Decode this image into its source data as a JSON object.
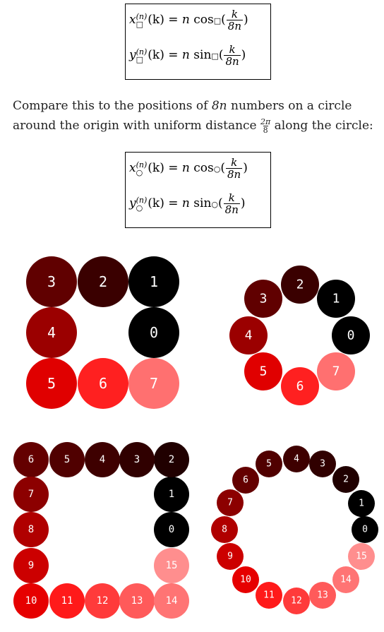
{
  "equations": {
    "square": {
      "x_lhs": "x",
      "y_lhs": "y",
      "sup": "(n)",
      "sub_symbol": "□",
      "arg": "(k)",
      "equals": "=",
      "n": "n",
      "cos": "cos",
      "sin": "sin",
      "frac_num": "k",
      "frac_den": "8n"
    },
    "circle": {
      "x_lhs": "x",
      "y_lhs": "y",
      "sup": "(n)",
      "sub_symbol": "○",
      "arg": "(k)",
      "equals": "=",
      "n": "n",
      "cos": "cos",
      "sin": "sin",
      "frac_num": "k",
      "frac_den": "8n"
    }
  },
  "paragraph": {
    "part1": "Compare this to the positions of ",
    "var": "8n",
    "part2": " numbers on a circle around the origin with uniform distance ",
    "frac_num": "2π",
    "frac_den": "8",
    "part3": " along the circle:"
  },
  "figures": {
    "square_8": {
      "labels": [
        "0",
        "1",
        "2",
        "3",
        "4",
        "5",
        "6",
        "7"
      ],
      "colors": [
        "#000000",
        "#000000",
        "#3a0000",
        "#600000",
        "#9b0000",
        "#e00000",
        "#ff2020",
        "#ff7070"
      ]
    },
    "circle_8": {
      "labels": [
        "0",
        "1",
        "2",
        "3",
        "4",
        "5",
        "6",
        "7"
      ],
      "colors": [
        "#000000",
        "#000000",
        "#3a0000",
        "#600000",
        "#9b0000",
        "#e00000",
        "#ff2020",
        "#ff7070"
      ]
    },
    "square_16": {
      "labels": [
        "0",
        "1",
        "2",
        "3",
        "4",
        "5",
        "6",
        "7",
        "8",
        "9",
        "10",
        "11",
        "12",
        "13",
        "14",
        "15"
      ],
      "colors": [
        "#000000",
        "#000000",
        "#200000",
        "#300000",
        "#3e0000",
        "#500000",
        "#640000",
        "#8c0000",
        "#b00000",
        "#cc0000",
        "#e60000",
        "#ff1a1a",
        "#ff3b3b",
        "#ff5a5a",
        "#ff7474",
        "#ff8e8e"
      ]
    },
    "circle_16": {
      "labels": [
        "0",
        "1",
        "2",
        "3",
        "4",
        "5",
        "6",
        "7",
        "8",
        "9",
        "10",
        "11",
        "12",
        "13",
        "14",
        "15"
      ],
      "colors": [
        "#000000",
        "#000000",
        "#200000",
        "#300000",
        "#3e0000",
        "#500000",
        "#640000",
        "#8c0000",
        "#b00000",
        "#cc0000",
        "#e60000",
        "#ff1a1a",
        "#ff3b3b",
        "#ff5a5a",
        "#ff7474",
        "#ff8e8e"
      ]
    }
  }
}
